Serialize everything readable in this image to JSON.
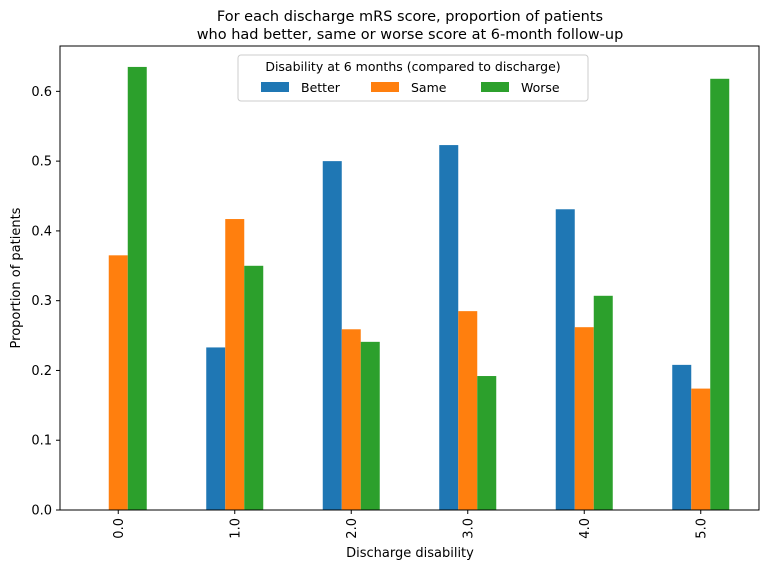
{
  "chart_data": {
    "type": "bar",
    "title_line1": "For each discharge mRS score, proportion of patients",
    "title_line2": "who had better, same or worse score at 6-month follow-up",
    "xlabel": "Discharge disability",
    "ylabel": "Proportion of patients",
    "categories": [
      "0.0",
      "1.0",
      "2.0",
      "3.0",
      "4.0",
      "5.0"
    ],
    "ylim": [
      0,
      0.665
    ],
    "yticks": [
      "0.0",
      "0.1",
      "0.2",
      "0.3",
      "0.4",
      "0.5",
      "0.6"
    ],
    "legend_title": "Disability at 6 months (compared to discharge)",
    "legend_position": "top-center",
    "grid": false,
    "series": [
      {
        "name": "Better",
        "color": "#1f77b4",
        "values": [
          0.0,
          0.233,
          0.5,
          0.523,
          0.431,
          0.208
        ]
      },
      {
        "name": "Same",
        "color": "#ff7f0e",
        "values": [
          0.365,
          0.417,
          0.259,
          0.285,
          0.262,
          0.174
        ]
      },
      {
        "name": "Worse",
        "color": "#2ca02c",
        "values": [
          0.635,
          0.35,
          0.241,
          0.192,
          0.307,
          0.618
        ]
      }
    ]
  }
}
